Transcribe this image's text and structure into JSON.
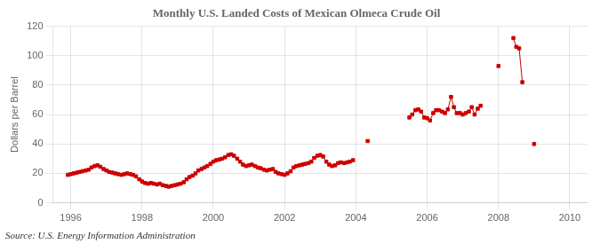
{
  "chart_data": {
    "type": "line",
    "title": "Monthly U.S. Landed Costs of Mexican Olmeca Crude Oil",
    "ylabel": "Dollars per Barrel",
    "annotations": [
      "Source: U.S. Energy Information Administration"
    ],
    "color": "#CC0000",
    "marker": "square",
    "grid": true,
    "xlim": [
      1995.5,
      2010.5
    ],
    "xticks": [
      1996,
      1998,
      2000,
      2002,
      2004,
      2006,
      2008,
      2010
    ],
    "ylim": [
      0,
      120
    ],
    "yticks": [
      0,
      20,
      40,
      60,
      80,
      100,
      120
    ],
    "x": [
      1995.92,
      1996.0,
      1996.08,
      1996.17,
      1996.25,
      1996.33,
      1996.42,
      1996.5,
      1996.58,
      1996.67,
      1996.75,
      1996.83,
      1996.92,
      1997.0,
      1997.08,
      1997.17,
      1997.25,
      1997.33,
      1997.42,
      1997.5,
      1997.58,
      1997.67,
      1997.75,
      1997.83,
      1997.92,
      1998.0,
      1998.08,
      1998.17,
      1998.25,
      1998.33,
      1998.42,
      1998.5,
      1998.58,
      1998.67,
      1998.75,
      1998.83,
      1998.92,
      1999.0,
      1999.08,
      1999.17,
      1999.25,
      1999.33,
      1999.42,
      1999.5,
      1999.58,
      1999.67,
      1999.75,
      1999.83,
      1999.92,
      2000.0,
      2000.08,
      2000.17,
      2000.25,
      2000.33,
      2000.42,
      2000.5,
      2000.58,
      2000.67,
      2000.75,
      2000.83,
      2000.92,
      2001.0,
      2001.08,
      2001.17,
      2001.25,
      2001.33,
      2001.42,
      2001.5,
      2001.58,
      2001.67,
      2001.75,
      2001.83,
      2001.92,
      2002.0,
      2002.08,
      2002.17,
      2002.25,
      2002.33,
      2002.42,
      2002.5,
      2002.58,
      2002.67,
      2002.75,
      2002.83,
      2002.92,
      2003.0,
      2003.08,
      2003.17,
      2003.25,
      2003.33,
      2003.42,
      2003.5,
      2003.58,
      2003.67,
      2003.75,
      2003.83,
      2003.92,
      2004.33,
      2005.5,
      2005.58,
      2005.67,
      2005.75,
      2005.83,
      2005.92,
      2006.0,
      2006.08,
      2006.17,
      2006.25,
      2006.33,
      2006.42,
      2006.5,
      2006.58,
      2006.67,
      2006.75,
      2006.83,
      2006.92,
      2007.0,
      2007.08,
      2007.17,
      2007.25,
      2007.33,
      2007.42,
      2007.5,
      2008.0,
      2008.42,
      2008.5,
      2008.58,
      2008.67,
      2009.0
    ],
    "values": [
      19.0,
      19.5,
      20.0,
      20.5,
      21.0,
      21.5,
      22.0,
      22.5,
      24.0,
      25.0,
      25.5,
      24.5,
      23.0,
      22.0,
      21.0,
      20.5,
      20.0,
      19.5,
      19.0,
      19.5,
      20.0,
      19.5,
      19.0,
      18.0,
      16.0,
      14.5,
      13.5,
      13.0,
      13.5,
      13.0,
      12.5,
      13.0,
      12.0,
      11.5,
      11.0,
      11.5,
      12.0,
      12.5,
      13.0,
      14.0,
      16.0,
      17.5,
      18.5,
      20.0,
      22.0,
      23.0,
      24.0,
      25.0,
      26.5,
      28.0,
      29.0,
      29.5,
      30.0,
      31.0,
      32.5,
      33.0,
      32.0,
      30.0,
      28.0,
      26.0,
      25.0,
      25.5,
      26.0,
      25.0,
      24.0,
      23.5,
      22.5,
      22.0,
      22.5,
      23.0,
      21.0,
      20.0,
      19.5,
      19.0,
      20.0,
      21.5,
      24.0,
      25.0,
      25.5,
      26.0,
      26.5,
      27.0,
      28.0,
      30.5,
      32.0,
      32.5,
      31.5,
      28.0,
      26.0,
      25.0,
      25.5,
      27.0,
      27.5,
      27.0,
      27.5,
      28.0,
      29.0,
      42.0,
      58.0,
      60.0,
      63.0,
      63.5,
      62.0,
      58.0,
      57.5,
      56.0,
      61.0,
      63.0,
      63.0,
      62.0,
      61.0,
      63.5,
      72.0,
      65.0,
      61.0,
      61.0,
      60.0,
      61.0,
      62.0,
      65.0,
      60.0,
      64.0,
      66.0,
      93.0,
      112.0,
      106.0,
      105.0,
      82.0,
      40.0
    ]
  }
}
